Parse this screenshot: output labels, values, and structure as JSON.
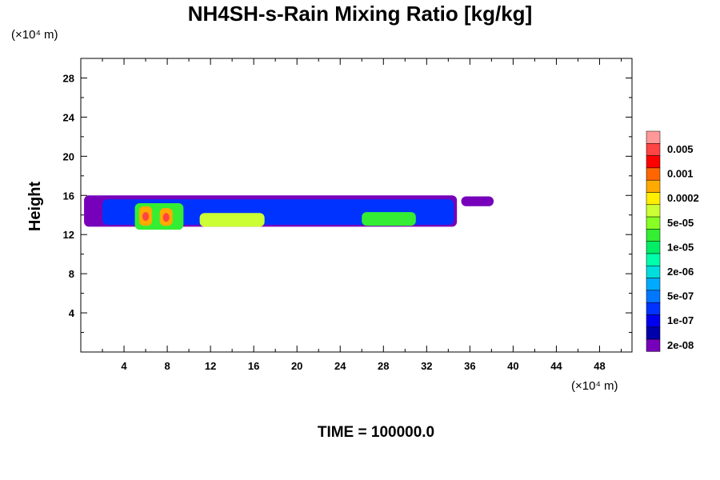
{
  "header": {
    "title": "NH4SH-s-Rain Mixing Ratio [kg/kg]",
    "time_label": "TIME = 100000.0"
  },
  "chart_data": {
    "type": "heatmap",
    "title": "NH4SH-s-Rain Mixing Ratio [kg/kg]",
    "xlabel": "",
    "ylabel": "Height",
    "x_unit": "(×10⁴ m)",
    "y_unit": "(×10⁴ m)",
    "xlim": [
      0,
      51
    ],
    "ylim": [
      0,
      30
    ],
    "x_ticks": [
      4,
      8,
      12,
      16,
      20,
      24,
      28,
      32,
      36,
      40,
      44,
      48
    ],
    "y_ticks": [
      4,
      8,
      12,
      16,
      20,
      24,
      28
    ],
    "colorbar": {
      "levels": [
        "0.005",
        "0.001",
        "0.0002",
        "5e-05",
        "1e-05",
        "2e-06",
        "5e-07",
        "1e-07",
        "2e-08"
      ],
      "colors": [
        "#ff9999",
        "#ff4444",
        "#ff0000",
        "#ff6600",
        "#ffaa00",
        "#ffee00",
        "#ccff33",
        "#88ff22",
        "#33ee33",
        "#00ee66",
        "#00ffaa",
        "#00dddd",
        "#00aaff",
        "#0077ff",
        "#0033ff",
        "#0000ee",
        "#0000aa",
        "#7700bb"
      ]
    },
    "regions": [
      {
        "x0": 0.3,
        "x1": 34.8,
        "ymin": 12.8,
        "ymax": 16.0,
        "level": "2e-08"
      },
      {
        "x0": 35.2,
        "x1": 38.2,
        "ymin": 14.9,
        "ymax": 15.9,
        "level": "2e-08"
      },
      {
        "x0": 2.0,
        "x1": 34.5,
        "ymin": 13.0,
        "ymax": 15.6,
        "level": "5e-07"
      },
      {
        "x0": 5.0,
        "x1": 9.5,
        "ymin": 12.5,
        "ymax": 15.2,
        "level": "1e-05"
      },
      {
        "x0": 11.0,
        "x1": 17.0,
        "ymin": 12.8,
        "ymax": 14.2,
        "level": "5e-05"
      },
      {
        "x0": 26.0,
        "x1": 31.0,
        "ymin": 12.9,
        "ymax": 14.3,
        "level": "1e-05"
      },
      {
        "x0": 5.4,
        "x1": 6.6,
        "ymin": 12.9,
        "ymax": 14.9,
        "level": "0.0002"
      },
      {
        "x0": 7.3,
        "x1": 8.5,
        "ymin": 12.9,
        "ymax": 14.7,
        "level": "0.0002"
      },
      {
        "x0": 5.7,
        "x1": 6.3,
        "ymin": 13.4,
        "ymax": 14.3,
        "level": "0.001"
      },
      {
        "x0": 7.6,
        "x1": 8.2,
        "ymin": 13.3,
        "ymax": 14.2,
        "level": "0.001"
      }
    ]
  }
}
